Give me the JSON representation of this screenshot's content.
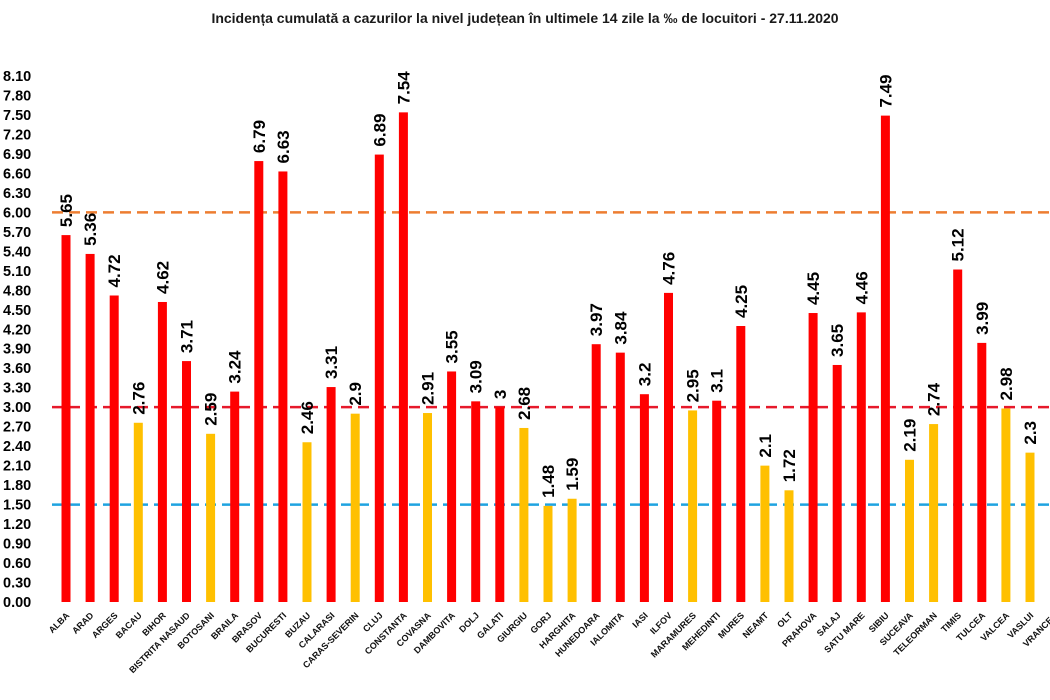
{
  "chart_data": {
    "type": "bar",
    "title": "Incidența cumulată a cazurilor la nivel județean în ultimele 14 zile la ‰ de locuitori - 27.11.2020",
    "xlabel": "",
    "ylabel": "",
    "ylim": [
      0,
      8.1
    ],
    "yticks": [
      "0.00",
      "0.30",
      "0.60",
      "0.90",
      "1.20",
      "1.50",
      "1.80",
      "2.10",
      "2.40",
      "2.70",
      "3.00",
      "3.30",
      "3.60",
      "3.90",
      "4.20",
      "4.50",
      "4.80",
      "5.10",
      "5.40",
      "5.70",
      "6.00",
      "6.30",
      "6.60",
      "6.90",
      "7.20",
      "7.50",
      "7.80",
      "8.10"
    ],
    "categories": [
      "ALBA",
      "ARAD",
      "ARGES",
      "BACAU",
      "BIHOR",
      "BISTRITA NASAUD",
      "BOTOSANI",
      "BRAILA",
      "BRASOV",
      "BUCURESTI",
      "BUZAU",
      "CALARASI",
      "CARAS-SEVERIN",
      "CLUJ",
      "CONSTANTA",
      "COVASNA",
      "DAMBOVITA",
      "DOLJ",
      "GALATI",
      "GIURGIU",
      "GORJ",
      "HARGHITA",
      "HUNEDOARA",
      "IALOMITA",
      "IASI",
      "ILFOV",
      "MARAMURES",
      "MEHEDINTI",
      "MURES",
      "NEAMT",
      "OLT",
      "PRAHOVA",
      "SALAJ",
      "SATU MARE",
      "SIBIU",
      "SUCEAVA",
      "TELEORMAN",
      "TIMIS",
      "TULCEA",
      "VALCEA",
      "VASLUI",
      "VRANCEA"
    ],
    "values": [
      5.65,
      5.36,
      4.72,
      2.76,
      4.62,
      3.71,
      2.59,
      3.24,
      6.79,
      6.63,
      2.46,
      3.31,
      2.9,
      6.89,
      7.54,
      2.91,
      3.55,
      3.09,
      3,
      2.68,
      1.48,
      1.59,
      3.97,
      3.84,
      3.2,
      4.76,
      2.95,
      3.1,
      4.25,
      2.1,
      1.72,
      4.45,
      3.65,
      4.46,
      7.49,
      2.19,
      2.74,
      5.12,
      3.99,
      2.98,
      2.3,
      null
    ],
    "value_labels": [
      "5.65",
      "5.36",
      "4.72",
      "2.76",
      "4.62",
      "3.71",
      "2.59",
      "3.24",
      "6.79",
      "6.63",
      "2.46",
      "3.31",
      "2.9",
      "6.89",
      "7.54",
      "2.91",
      "3.55",
      "3.09",
      "3",
      "2.68",
      "1.48",
      "1.59",
      "3.97",
      "3.84",
      "3.2",
      "4.76",
      "2.95",
      "3.1",
      "4.25",
      "2.1",
      "1.72",
      "4.45",
      "3.65",
      "4.46",
      "7.49",
      "2.19",
      "2.74",
      "5.12",
      "3.99",
      "2.98",
      "2.3",
      ""
    ],
    "bar_colors": [
      "#ff0000",
      "#ff0000",
      "#ff0000",
      "#ffc000",
      "#ff0000",
      "#ff0000",
      "#ffc000",
      "#ff0000",
      "#ff0000",
      "#ff0000",
      "#ffc000",
      "#ff0000",
      "#ffc000",
      "#ff0000",
      "#ff0000",
      "#ffc000",
      "#ff0000",
      "#ff0000",
      "#ff0000",
      "#ffc000",
      "#ffc000",
      "#ffc000",
      "#ff0000",
      "#ff0000",
      "#ff0000",
      "#ff0000",
      "#ffc000",
      "#ff0000",
      "#ff0000",
      "#ffc000",
      "#ffc000",
      "#ff0000",
      "#ff0000",
      "#ff0000",
      "#ff0000",
      "#ffc000",
      "#ffc000",
      "#ff0000",
      "#ff0000",
      "#ffc000",
      "#ffc000",
      "#ffc000"
    ],
    "reference_lines": [
      {
        "value": 6.0,
        "color": "#ed7d31"
      },
      {
        "value": 3.0,
        "color": "#e6192b"
      },
      {
        "value": 1.5,
        "color": "#1fa3e0"
      }
    ],
    "grid": false,
    "legend": "none"
  }
}
